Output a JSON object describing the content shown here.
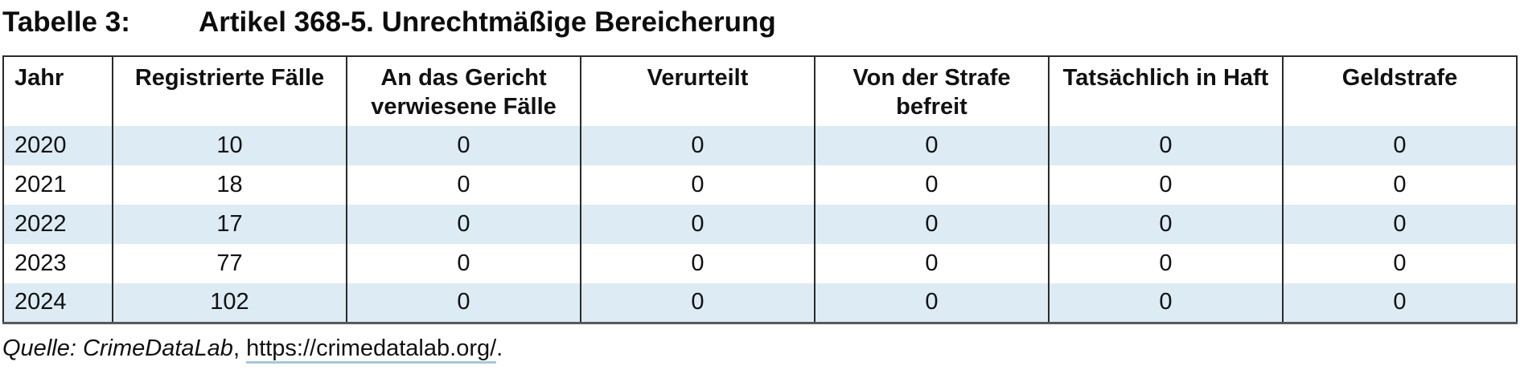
{
  "title": {
    "label": "Tabelle 3:",
    "text": "Artikel 368-5. Unrechtmäßige Bereicherung"
  },
  "table": {
    "columns": [
      "Jahr",
      "Registrierte Fälle",
      "An das Gericht verwiesene Fälle",
      "Verurteilt",
      "Von der Strafe befreit",
      "Tatsächlich in Haft",
      "Geldstrafe"
    ],
    "rows": [
      {
        "cells": [
          "2020",
          "10",
          "0",
          "0",
          "0",
          "0",
          "0"
        ]
      },
      {
        "cells": [
          "2021",
          "18",
          "0",
          "0",
          "0",
          "0",
          "0"
        ]
      },
      {
        "cells": [
          "2022",
          "17",
          "0",
          "0",
          "0",
          "0",
          "0"
        ]
      },
      {
        "cells": [
          "2023",
          "77",
          "0",
          "0",
          "0",
          "0",
          "0"
        ]
      },
      {
        "cells": [
          "2024",
          "102",
          "0",
          "0",
          "0",
          "0",
          "0"
        ]
      }
    ]
  },
  "source": {
    "prefix": "Quelle: ",
    "name": "CrimeDataLab",
    "separator": ", ",
    "link": "https://crimedatalab.org/",
    "suffix": "."
  },
  "colors": {
    "row_stripe": "#dcebf4",
    "border_dark": "#2b2b2b",
    "border_bottom": "#595959",
    "link_underline": "#a6c9d9",
    "text": "#111111"
  }
}
